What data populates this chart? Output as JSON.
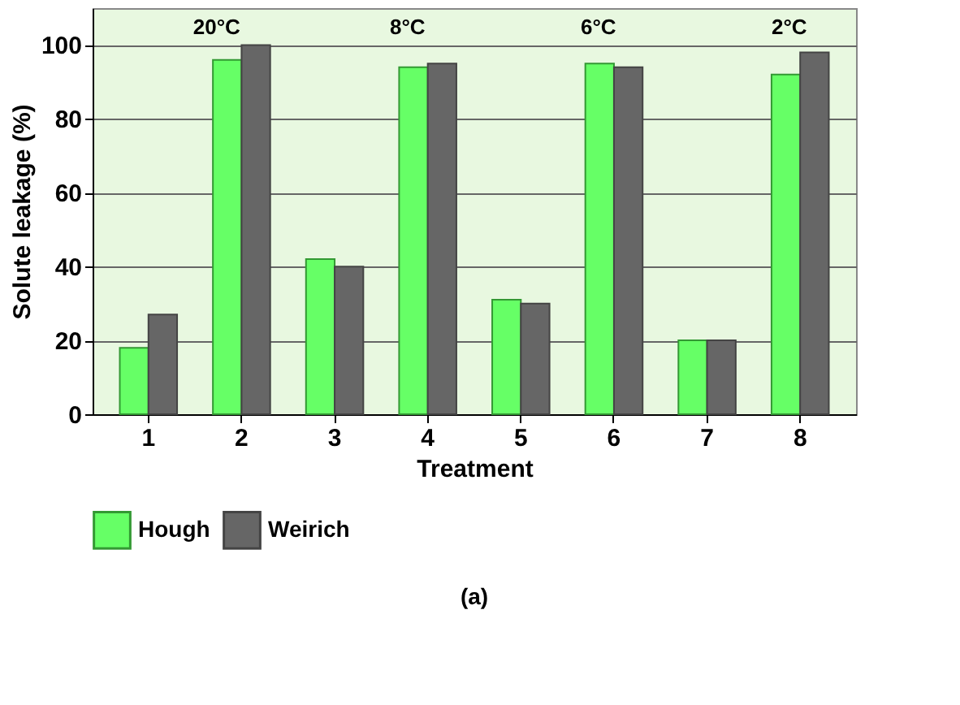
{
  "chart_data": {
    "type": "bar",
    "xlabel": "Treatment",
    "ylabel": "Solute leakage (%)",
    "categories": [
      "1",
      "2",
      "3",
      "4",
      "5",
      "6",
      "7",
      "8"
    ],
    "series": [
      {
        "name": "Hough",
        "color": "#66ff66",
        "values": [
          18,
          96,
          42,
          94,
          31,
          95,
          20,
          92
        ]
      },
      {
        "name": "Weirich",
        "color": "#666666",
        "values": [
          27,
          100,
          40,
          95,
          30,
          94,
          20,
          98
        ]
      }
    ],
    "ylim": [
      0,
      110
    ],
    "yticks": [
      0,
      20,
      40,
      60,
      80,
      100
    ],
    "grid": "y",
    "legend": "bottom",
    "annotations": [
      "20°C",
      "8°C",
      "6°C",
      "2°C",
      "(a)"
    ]
  }
}
